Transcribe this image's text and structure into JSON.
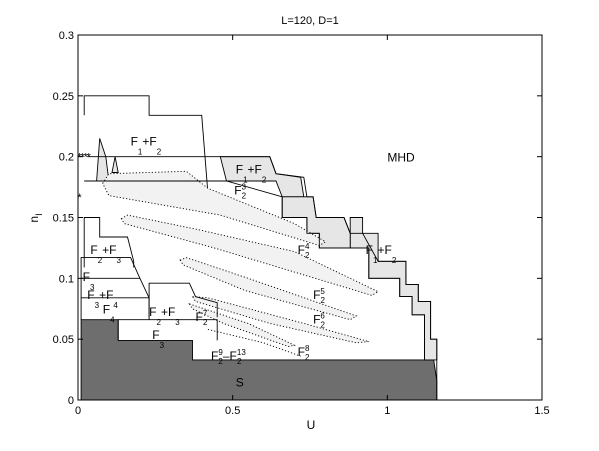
{
  "chart_data": {
    "type": "phase-diagram",
    "title": "L=120, D=1",
    "xlabel": "U",
    "ylabel": "n",
    "ylabel_sub": "I",
    "xlim": [
      0,
      1.5
    ],
    "ylim": [
      0,
      0.3
    ],
    "xticks": [
      0,
      0.5,
      1,
      1.5
    ],
    "xtick_labels": [
      "0",
      "0.5",
      "1",
      "1.5"
    ],
    "yticks": [
      0,
      0.05,
      0.1,
      0.15,
      0.2,
      0.25,
      0.3
    ],
    "ytick_labels": [
      "0",
      "0.05",
      "0.1",
      "0.15",
      "0.2",
      "0.25",
      "0.3"
    ],
    "grid": false,
    "colors": {
      "superfluid": "#6e6e6e",
      "coexist": "#e6e6e6",
      "dotted": "#f2f2f2",
      "edge": "#000000"
    },
    "regions": [
      {
        "id": "S",
        "type": "solid",
        "fill": "superfluid",
        "label": {
          "main": "S",
          "sub": "",
          "sup": "",
          "x": 0.51,
          "y": 0.011
        },
        "points": [
          [
            0.01,
            0
          ],
          [
            0.01,
            0.066
          ],
          [
            0.13,
            0.066
          ],
          [
            0.13,
            0.049
          ],
          [
            0.37,
            0.049
          ],
          [
            0.37,
            0.033
          ],
          [
            1.15,
            0.033
          ],
          [
            1.16,
            0.016
          ],
          [
            1.16,
            0
          ]
        ]
      },
      {
        "id": "F1F2-top",
        "type": "solid",
        "fill": "none",
        "label": {
          "main": "F",
          "sub": "1",
          "sup": "",
          "extra": "+F",
          "extra_sub": "2",
          "x": 0.17,
          "y": 0.209
        },
        "points": [
          [
            0.02,
            0.234
          ],
          [
            0.02,
            0.25
          ],
          [
            0.23,
            0.25
          ],
          [
            0.23,
            0.234
          ],
          [
            0.4,
            0.234
          ],
          [
            0.42,
            0.17
          ]
        ]
      },
      {
        "id": "F1F2-mid",
        "type": "solid",
        "fill": "coexist",
        "label": {
          "main": "F",
          "sub": "1",
          "sup": "",
          "extra": "+F",
          "extra_sub": "2",
          "x": 0.51,
          "y": 0.186
        },
        "points": [
          [
            0.46,
            0.2
          ],
          [
            0.62,
            0.2
          ],
          [
            0.64,
            0.186
          ],
          [
            0.72,
            0.183
          ],
          [
            0.73,
            0.167
          ],
          [
            0.66,
            0.167
          ],
          [
            0.64,
            0.18
          ],
          [
            0.48,
            0.18
          ]
        ]
      },
      {
        "id": "F1F2-right",
        "type": "solid",
        "fill": "coexist",
        "label": {
          "main": "F",
          "sub": "1",
          "sup": "",
          "extra": "+F",
          "extra_sub": "2",
          "x": 0.93,
          "y": 0.12
        },
        "points": [
          [
            0.88,
            0.15
          ],
          [
            0.92,
            0.15
          ],
          [
            0.92,
            0.137
          ],
          [
            0.97,
            0.137
          ],
          [
            0.97,
            0.114
          ],
          [
            1.06,
            0.114
          ],
          [
            1.06,
            0.095
          ],
          [
            1.1,
            0.095
          ],
          [
            1.1,
            0.081
          ],
          [
            1.14,
            0.081
          ],
          [
            1.14,
            0.05
          ],
          [
            1.16,
            0.05
          ],
          [
            1.16,
            0.033
          ],
          [
            1.12,
            0.033
          ],
          [
            1.12,
            0.07
          ],
          [
            1.08,
            0.07
          ],
          [
            1.08,
            0.085
          ],
          [
            1.04,
            0.085
          ],
          [
            1.04,
            0.1
          ],
          [
            0.94,
            0.1
          ],
          [
            0.94,
            0.125
          ],
          [
            0.88,
            0.125
          ]
        ]
      },
      {
        "id": "upper-strip",
        "type": "solid",
        "fill": "coexist",
        "label": null,
        "points": [
          [
            0.66,
            0.167
          ],
          [
            0.73,
            0.167
          ],
          [
            0.76,
            0.167
          ],
          [
            0.77,
            0.15
          ],
          [
            0.86,
            0.15
          ],
          [
            0.88,
            0.137
          ],
          [
            0.88,
            0.125
          ],
          [
            0.78,
            0.125
          ],
          [
            0.78,
            0.137
          ],
          [
            0.74,
            0.137
          ],
          [
            0.74,
            0.15
          ],
          [
            0.66,
            0.15
          ]
        ]
      },
      {
        "id": "left-spike",
        "type": "solid",
        "fill": "coexist",
        "label": null,
        "points": [
          [
            0.06,
            0.18
          ],
          [
            0.07,
            0.215
          ],
          [
            0.09,
            0.2
          ],
          [
            0.1,
            0.18
          ]
        ]
      },
      {
        "id": "left-spike-2",
        "type": "solid",
        "fill": "coexist",
        "label": null,
        "points": [
          [
            0.11,
            0.187
          ],
          [
            0.12,
            0.2
          ],
          [
            0.13,
            0.187
          ]
        ]
      },
      {
        "id": "F2-3",
        "type": "dotted",
        "fill": "dotted",
        "label": {
          "main": "F",
          "sub": "2",
          "sup": "3",
          "x": 0.505,
          "y": 0.169
        },
        "points": [
          [
            0.08,
            0.178
          ],
          [
            0.1,
            0.186
          ],
          [
            0.35,
            0.188
          ],
          [
            0.42,
            0.174
          ],
          [
            0.7,
            0.145
          ],
          [
            0.8,
            0.13
          ],
          [
            0.78,
            0.127
          ],
          [
            0.46,
            0.152
          ],
          [
            0.1,
            0.168
          ]
        ]
      },
      {
        "id": "F2-4",
        "type": "dotted",
        "fill": "dotted",
        "label": {
          "main": "F",
          "sub": "2",
          "sup": "4",
          "x": 0.71,
          "y": 0.12
        },
        "points": [
          [
            0.14,
            0.149
          ],
          [
            0.16,
            0.152
          ],
          [
            0.39,
            0.14
          ],
          [
            0.7,
            0.122
          ],
          [
            0.97,
            0.089
          ],
          [
            0.95,
            0.086
          ],
          [
            0.44,
            0.125
          ],
          [
            0.15,
            0.145
          ]
        ]
      },
      {
        "id": "F2-5",
        "type": "dotted",
        "fill": "dotted",
        "label": {
          "main": "F",
          "sub": "2",
          "sup": "5",
          "x": 0.76,
          "y": 0.083
        },
        "points": [
          [
            0.33,
            0.115
          ],
          [
            0.35,
            0.117
          ],
          [
            0.55,
            0.1
          ],
          [
            0.9,
            0.069
          ],
          [
            0.88,
            0.066
          ],
          [
            0.54,
            0.09
          ],
          [
            0.34,
            0.111
          ]
        ]
      },
      {
        "id": "F2-6",
        "type": "dotted",
        "fill": "dotted",
        "label": {
          "main": "F",
          "sub": "2",
          "sup": "6",
          "x": 0.76,
          "y": 0.063
        },
        "points": [
          [
            0.37,
            0.085
          ],
          [
            0.42,
            0.084
          ],
          [
            0.73,
            0.063
          ],
          [
            0.94,
            0.048
          ],
          [
            0.9,
            0.047
          ],
          [
            0.62,
            0.063
          ],
          [
            0.38,
            0.081
          ]
        ]
      },
      {
        "id": "F2-7",
        "type": "dotted",
        "fill": "dotted",
        "label": {
          "main": "F",
          "sub": "2",
          "sup": "7",
          "x": 0.38,
          "y": 0.065
        },
        "points": [
          [
            0.36,
            0.079
          ],
          [
            0.42,
            0.074
          ],
          [
            0.55,
            0.063
          ],
          [
            0.7,
            0.045
          ],
          [
            0.68,
            0.044
          ],
          [
            0.47,
            0.063
          ],
          [
            0.37,
            0.075
          ]
        ]
      },
      {
        "id": "F2-8",
        "type": "dotted",
        "fill": "none",
        "label": {
          "main": "F",
          "sub": "2",
          "sup": "8",
          "x": 0.71,
          "y": 0.036
        },
        "points": [
          [
            0.42,
            0.058
          ],
          [
            0.6,
            0.047
          ],
          [
            0.72,
            0.036
          ]
        ]
      },
      {
        "id": "F2-9-13",
        "type": "none",
        "fill": "none",
        "label": {
          "main": "F",
          "sub": "2",
          "sup": "9",
          "extra": "–F",
          "extra_sub": "2",
          "extra_sup": "13",
          "x": 0.43,
          "y": 0.033
        },
        "points": []
      },
      {
        "id": "F2F3-upper",
        "type": "solid",
        "fill": "none",
        "label": {
          "main": "F",
          "sub": "2",
          "sup": "",
          "extra": "+F",
          "extra_sub": "3",
          "x": 0.04,
          "y": 0.12
        },
        "points": [
          [
            0.02,
            0.109
          ],
          [
            0.02,
            0.15
          ],
          [
            0.07,
            0.15
          ],
          [
            0.07,
            0.134
          ],
          [
            0.16,
            0.134
          ],
          [
            0.18,
            0.114
          ],
          [
            0.18,
            0.109
          ]
        ]
      },
      {
        "id": "F3-left",
        "type": "solid",
        "fill": "none",
        "label": {
          "main": "F",
          "sub": "3",
          "sup": "",
          "x": 0.015,
          "y": 0.098
        },
        "points": [
          [
            0.01,
            0.1
          ],
          [
            0.01,
            0.117
          ],
          [
            0.17,
            0.117
          ],
          [
            0.2,
            0.1
          ]
        ]
      },
      {
        "id": "F3F4",
        "type": "solid",
        "fill": "none",
        "label": {
          "main": "F",
          "sub": "3",
          "sup": "",
          "extra": "+F",
          "extra_sub": "4",
          "x": 0.03,
          "y": 0.083
        },
        "points": [
          [
            0.01,
            0.084
          ],
          [
            0.01,
            0.1
          ],
          [
            0.2,
            0.1
          ],
          [
            0.23,
            0.084
          ],
          [
            0.23,
            0.083
          ]
        ]
      },
      {
        "id": "F4",
        "type": "solid",
        "fill": "none",
        "label": {
          "main": "F",
          "sub": "4",
          "sup": "",
          "x": 0.08,
          "y": 0.071
        },
        "points": [
          [
            0.01,
            0.066
          ],
          [
            0.01,
            0.084
          ],
          [
            0.23,
            0.084
          ],
          [
            0.23,
            0.066
          ]
        ]
      },
      {
        "id": "F2F3-lower",
        "type": "solid",
        "fill": "none",
        "label": {
          "main": "F",
          "sub": "2",
          "sup": "",
          "extra": "+F",
          "extra_sub": "3",
          "x": 0.23,
          "y": 0.069
        },
        "points": [
          [
            0.23,
            0.068
          ],
          [
            0.23,
            0.096
          ],
          [
            0.36,
            0.096
          ],
          [
            0.38,
            0.085
          ],
          [
            0.45,
            0.08
          ],
          [
            0.45,
            0.068
          ]
        ]
      },
      {
        "id": "F3-bottom",
        "type": "solid",
        "fill": "none",
        "label": {
          "main": "F",
          "sub": "3",
          "sup": "",
          "x": 0.24,
          "y": 0.05
        },
        "points": [
          [
            0.13,
            0.049
          ],
          [
            0.13,
            0.066
          ],
          [
            0.45,
            0.066
          ],
          [
            0.45,
            0.049
          ]
        ]
      },
      {
        "id": "MHD-boundary",
        "type": "solid",
        "fill": "none",
        "label": {
          "main": "MHD",
          "sub": "",
          "sup": "",
          "x": 1.0,
          "y": 0.196
        },
        "points": [
          [
            0.03,
            0.2
          ],
          [
            0.62,
            0.2
          ],
          [
            0.64,
            0.186
          ],
          [
            0.73,
            0.183
          ],
          [
            0.74,
            0.167
          ],
          [
            0.76,
            0.167
          ],
          [
            0.77,
            0.15
          ],
          [
            0.86,
            0.15
          ],
          [
            0.88,
            0.137
          ],
          [
            0.92,
            0.137
          ],
          [
            0.97,
            0.114
          ],
          [
            1.06,
            0.114
          ],
          [
            1.06,
            0.095
          ],
          [
            1.1,
            0.095
          ],
          [
            1.1,
            0.081
          ],
          [
            1.14,
            0.081
          ],
          [
            1.14,
            0.05
          ],
          [
            1.16,
            0.05
          ],
          [
            1.16,
            0.0
          ]
        ]
      },
      {
        "id": "inner-boundary",
        "type": "solid",
        "fill": "none",
        "label": null,
        "points": [
          [
            0.02,
            0.18
          ],
          [
            0.48,
            0.18
          ],
          [
            0.66,
            0.167
          ],
          [
            0.66,
            0.15
          ],
          [
            0.74,
            0.15
          ],
          [
            0.74,
            0.137
          ],
          [
            0.78,
            0.137
          ],
          [
            0.78,
            0.125
          ],
          [
            0.94,
            0.125
          ],
          [
            0.94,
            0.1
          ],
          [
            1.04,
            0.1
          ],
          [
            1.04,
            0.085
          ],
          [
            1.08,
            0.085
          ],
          [
            1.08,
            0.07
          ],
          [
            1.12,
            0.07
          ],
          [
            1.12,
            0.033
          ]
        ]
      }
    ],
    "markers": [
      {
        "type": "asterisk",
        "x": 0.005,
        "y": 0.2
      },
      {
        "type": "asterisk",
        "x": 0.015,
        "y": 0.2
      },
      {
        "type": "asterisk",
        "x": 0.025,
        "y": 0.2
      },
      {
        "type": "asterisk",
        "x": 0.035,
        "y": 0.2
      },
      {
        "type": "asterisk",
        "x": 0.005,
        "y": 0.167
      }
    ]
  }
}
